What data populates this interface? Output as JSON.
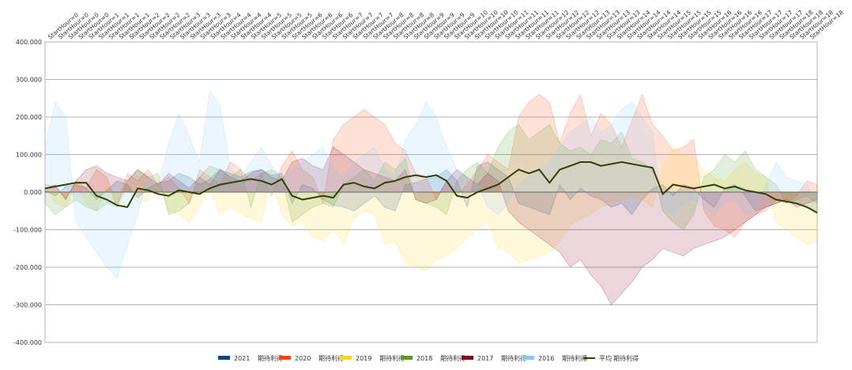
{
  "chart_data": {
    "type": "area",
    "title": "",
    "xlabel": "",
    "ylabel": "",
    "ylim": [
      -400,
      400
    ],
    "y_ticks": [
      400,
      300,
      200,
      100,
      0,
      -100,
      -200,
      -300,
      -400
    ],
    "y_tick_labels": [
      "400.000",
      "300.000",
      "200.000",
      "100.000",
      "0.000",
      "-100.000",
      "-200.000",
      "-300.000",
      "-400.000"
    ],
    "x_tick_labels": [
      "StartHour=0",
      "StartHour=0",
      "StartHour=0",
      "StartHour=0",
      "StartHour=1",
      "StartHour=1",
      "StartHour=1",
      "StartHour=1",
      "StartHour=2",
      "StartHour=2",
      "StartHour=2",
      "StartHour=2",
      "StartHour=3",
      "StartHour=3",
      "StartHour=3",
      "StartHour=3",
      "StartHour=4",
      "StartHour=4",
      "StartHour=4",
      "StartHour=4",
      "StartHour=5",
      "StartHour=5",
      "StartHour=5",
      "StartHour=5",
      "StartHour=6",
      "StartHour=6",
      "StartHour=6",
      "StartHour=6",
      "StartHour=7",
      "StartHour=7",
      "StartHour=7",
      "StartHour=7",
      "StartHour=8",
      "StartHour=8",
      "StartHour=8",
      "StartHour=8",
      "StartHour=9",
      "StartHour=9",
      "StartHour=9",
      "StartHour=9",
      "StartHour=10",
      "StartHour=10",
      "StartHour=10",
      "StartHour=10",
      "StartHour=11",
      "StartHour=11",
      "StartHour=11",
      "StartHour=11",
      "StartHour=12",
      "StartHour=12",
      "StartHour=12",
      "StartHour=12",
      "StartHour=13",
      "StartHour=13",
      "StartHour=13",
      "StartHour=13",
      "StartHour=14",
      "StartHour=14",
      "StartHour=14",
      "StartHour=14",
      "StartHour=15",
      "StartHour=15",
      "StartHour=15",
      "StartHour=15",
      "StartHour=16",
      "StartHour=16",
      "StartHour=16",
      "StartHour=16",
      "StartHour=17",
      "StartHour=17",
      "StartHour=17",
      "StartHour=17",
      "StartHour=18",
      "StartHour=18",
      "StartHour=18",
      "StartHour=18"
    ],
    "grid": true,
    "legend_position": "bottom",
    "series": [
      {
        "name": "2021 期待利得",
        "color": "#004586",
        "kind": "area",
        "values": [
          5,
          -10,
          15,
          20,
          10,
          -20,
          5,
          30,
          20,
          -15,
          10,
          25,
          30,
          50,
          40,
          20,
          35,
          60,
          50,
          40,
          55,
          60,
          45,
          50,
          -30,
          20,
          10,
          -20,
          -35,
          -40,
          -50,
          -30,
          -10,
          -40,
          -50,
          20,
          25,
          35,
          40,
          60,
          30,
          -40,
          70,
          80,
          60,
          40,
          -30,
          -40,
          -50,
          -60,
          20,
          -20,
          10,
          -10,
          -20,
          -40,
          -30,
          -60,
          -20,
          10,
          20,
          -10,
          20,
          10,
          -20,
          -40,
          10,
          20,
          -10,
          -50,
          -40,
          -30,
          -20,
          -30,
          -40,
          -50
        ]
      },
      {
        "name": "2020 期待利得",
        "color": "#ff420e",
        "kind": "area",
        "values": [
          20,
          15,
          -20,
          30,
          10,
          60,
          40,
          -40,
          50,
          30,
          60,
          20,
          40,
          10,
          -30,
          60,
          40,
          20,
          80,
          60,
          30,
          50,
          -10,
          70,
          110,
          60,
          40,
          -30,
          140,
          180,
          200,
          220,
          200,
          180,
          130,
          110,
          50,
          40,
          -20,
          30,
          -10,
          20,
          60,
          100,
          80,
          60,
          200,
          240,
          260,
          240,
          130,
          210,
          260,
          150,
          210,
          180,
          120,
          190,
          260,
          180,
          150,
          110,
          120,
          140,
          -50,
          -90,
          -100,
          -120,
          -80,
          -60,
          -50,
          -20,
          -30,
          -10,
          30,
          20
        ]
      },
      {
        "name": "2019 期待利得",
        "color": "#ffd320",
        "kind": "area",
        "values": [
          20,
          -30,
          -40,
          30,
          -30,
          -50,
          20,
          -40,
          10,
          -30,
          -20,
          30,
          -50,
          -60,
          -80,
          -40,
          10,
          -60,
          -40,
          -60,
          -70,
          -80,
          30,
          -60,
          -90,
          -80,
          -120,
          -130,
          -100,
          -140,
          -70,
          -50,
          -60,
          -140,
          -130,
          -190,
          -200,
          -210,
          -180,
          -170,
          -150,
          -120,
          -100,
          -80,
          -150,
          -160,
          -190,
          -180,
          -170,
          -160,
          -130,
          -90,
          -70,
          -60,
          -40,
          -30,
          -20,
          -10,
          -20,
          -40,
          70,
          120,
          100,
          90,
          60,
          40,
          30,
          60,
          80,
          50,
          40,
          -80,
          -100,
          -120,
          -140,
          -130
        ]
      },
      {
        "name": "2018 期待利得",
        "color": "#579d1c",
        "kind": "area",
        "values": [
          -30,
          -60,
          -40,
          -20,
          -40,
          -50,
          -30,
          -40,
          30,
          60,
          40,
          50,
          -60,
          -50,
          -30,
          40,
          70,
          60,
          40,
          60,
          -40,
          50,
          60,
          40,
          -80,
          -60,
          -40,
          -30,
          -40,
          20,
          40,
          60,
          30,
          80,
          60,
          90,
          -20,
          -30,
          -40,
          -60,
          30,
          60,
          80,
          50,
          120,
          160,
          180,
          140,
          160,
          180,
          130,
          110,
          120,
          100,
          140,
          130,
          160,
          90,
          80,
          60,
          -50,
          -80,
          -100,
          -60,
          40,
          60,
          100,
          80,
          110,
          60,
          40,
          20,
          -30,
          -20,
          -10,
          -30
        ]
      },
      {
        "name": "2017 期待利得",
        "color": "#7e0021",
        "kind": "area",
        "values": [
          10,
          20,
          -20,
          30,
          60,
          70,
          50,
          40,
          30,
          60,
          40,
          20,
          50,
          30,
          10,
          40,
          20,
          60,
          40,
          30,
          50,
          60,
          40,
          30,
          80,
          90,
          70,
          60,
          120,
          100,
          80,
          60,
          50,
          40,
          30,
          60,
          -20,
          -30,
          -20,
          30,
          60,
          40,
          20,
          50,
          30,
          -50,
          -80,
          -100,
          -120,
          -140,
          -160,
          -200,
          -180,
          -220,
          -250,
          -300,
          -270,
          -240,
          -200,
          -180,
          -150,
          -160,
          -170,
          -150,
          -140,
          -130,
          -120,
          -100,
          -80,
          -60,
          -40,
          -30,
          -20,
          -40,
          -30,
          -20
        ]
      },
      {
        "name": "2016 期待利得",
        "color": "#83caff",
        "kind": "area",
        "values": [
          120,
          240,
          200,
          -80,
          -120,
          -160,
          -200,
          -230,
          -140,
          -60,
          40,
          20,
          130,
          210,
          150,
          80,
          270,
          230,
          60,
          40,
          80,
          120,
          70,
          40,
          60,
          80,
          100,
          120,
          60,
          40,
          80,
          100,
          120,
          60,
          40,
          140,
          180,
          240,
          200,
          120,
          60,
          40,
          20,
          -40,
          -60,
          -30,
          20,
          40,
          60,
          80,
          120,
          160,
          180,
          200,
          160,
          180,
          220,
          240,
          200,
          160,
          -40,
          -60,
          -30,
          -20,
          -40,
          -60,
          -30,
          -20,
          -60,
          -50,
          20,
          80,
          40,
          30,
          20,
          -30
        ]
      },
      {
        "name": "平均 期待利得",
        "color": "#314004",
        "kind": "line",
        "values": [
          10,
          15,
          20,
          25,
          25,
          -10,
          -20,
          -35,
          -40,
          10,
          5,
          -5,
          -10,
          5,
          0,
          -5,
          10,
          20,
          25,
          30,
          35,
          30,
          20,
          35,
          -10,
          -20,
          -15,
          -10,
          -15,
          20,
          25,
          15,
          10,
          25,
          30,
          40,
          45,
          40,
          45,
          30,
          -10,
          -15,
          0,
          10,
          20,
          40,
          60,
          50,
          60,
          25,
          60,
          70,
          80,
          80,
          70,
          75,
          80,
          75,
          70,
          65,
          -5,
          20,
          15,
          10,
          15,
          20,
          10,
          15,
          5,
          0,
          -5,
          -20,
          -25,
          -30,
          -40,
          -55
        ]
      }
    ]
  },
  "legend": [
    {
      "label": "2021",
      "suffix": "期待利得",
      "color": "#004586",
      "kind": "box"
    },
    {
      "label": "2020",
      "suffix": "期待利得",
      "color": "#ff420e",
      "kind": "box"
    },
    {
      "label": "2019",
      "suffix": "期待利得",
      "color": "#ffd320",
      "kind": "box"
    },
    {
      "label": "2018",
      "suffix": "期待利得",
      "color": "#579d1c",
      "kind": "box"
    },
    {
      "label": "2017",
      "suffix": "期待利得",
      "color": "#7e0021",
      "kind": "box"
    },
    {
      "label": "2016",
      "suffix": "期待利得",
      "color": "#83caff",
      "kind": "box"
    },
    {
      "label": "平均",
      "suffix": "期待利得",
      "color": "#314004",
      "kind": "line"
    }
  ]
}
